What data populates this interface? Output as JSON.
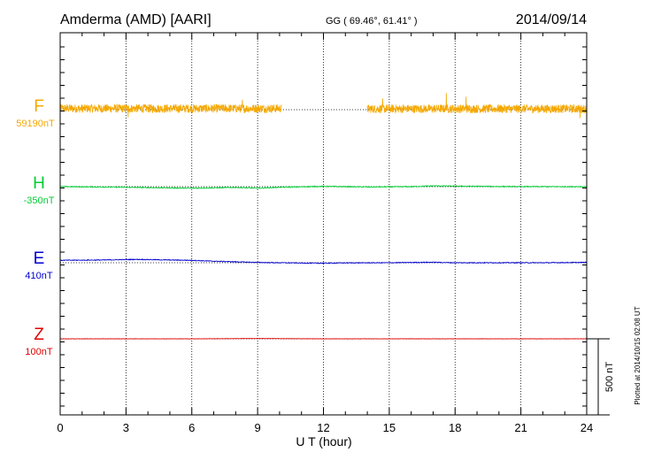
{
  "header": {
    "station": "Amderma (AMD)  [AARI]",
    "coords": "GG ( 69.46°,  61.41° )",
    "date": "2014/09/14"
  },
  "side_note": "Plotted at 2014/10/15 02:08 UT",
  "chart_data": {
    "type": "line",
    "xlabel": "U T (hour)",
    "xlim": [
      0,
      24
    ],
    "xticks": [
      "0",
      "3",
      "6",
      "9",
      "12",
      "15",
      "18",
      "21",
      "24"
    ],
    "scale_bar": "500 nT",
    "grid": true,
    "colors": {
      "F": "#f5a800",
      "H": "#00cc33",
      "E": "#0000cc",
      "Z": "#e00000"
    },
    "series": [
      {
        "name": "F",
        "baseline_label": "59190nT",
        "segments": [
          {
            "start": 0,
            "end": 10.1,
            "mean": 8,
            "noise": 28
          },
          {
            "start": 14.0,
            "end": 24,
            "mean": 6,
            "noise": 28
          }
        ],
        "spikes": [
          {
            "t": 3.1,
            "value": -50
          },
          {
            "t": 8.3,
            "value": 65
          },
          {
            "t": 14.7,
            "value": 75
          },
          {
            "t": 17.6,
            "value": 110
          },
          {
            "t": 18.5,
            "value": 85
          },
          {
            "t": 23.7,
            "value": -55
          }
        ]
      },
      {
        "name": "H",
        "baseline_label": "-350nT",
        "nodes": [
          [
            0,
            0
          ],
          [
            2,
            -2
          ],
          [
            4,
            -6
          ],
          [
            6,
            -10
          ],
          [
            8,
            -5
          ],
          [
            9,
            -10
          ],
          [
            10,
            -4
          ],
          [
            12,
            2
          ],
          [
            14,
            -2
          ],
          [
            16,
            0
          ],
          [
            17,
            5
          ],
          [
            19,
            2
          ],
          [
            21,
            0
          ],
          [
            24,
            0
          ]
        ],
        "noise": 3
      },
      {
        "name": "E",
        "baseline_label": "410nT",
        "nodes": [
          [
            0,
            16
          ],
          [
            2,
            18
          ],
          [
            3.5,
            22
          ],
          [
            5,
            18
          ],
          [
            6,
            16
          ],
          [
            7,
            10
          ],
          [
            8,
            6
          ],
          [
            9,
            2
          ],
          [
            10,
            0
          ],
          [
            11,
            -2
          ],
          [
            12,
            -3
          ],
          [
            13,
            -1
          ],
          [
            15,
            0
          ],
          [
            17,
            3
          ],
          [
            18,
            0
          ],
          [
            20,
            0
          ],
          [
            22,
            0
          ],
          [
            24,
            2
          ]
        ],
        "noise": 2.5
      },
      {
        "name": "Z",
        "baseline_label": "100nT",
        "nodes": [
          [
            0,
            0
          ],
          [
            6,
            0
          ],
          [
            9,
            2
          ],
          [
            12,
            0
          ],
          [
            18,
            0
          ],
          [
            24,
            0
          ]
        ],
        "noise": 1
      }
    ]
  }
}
